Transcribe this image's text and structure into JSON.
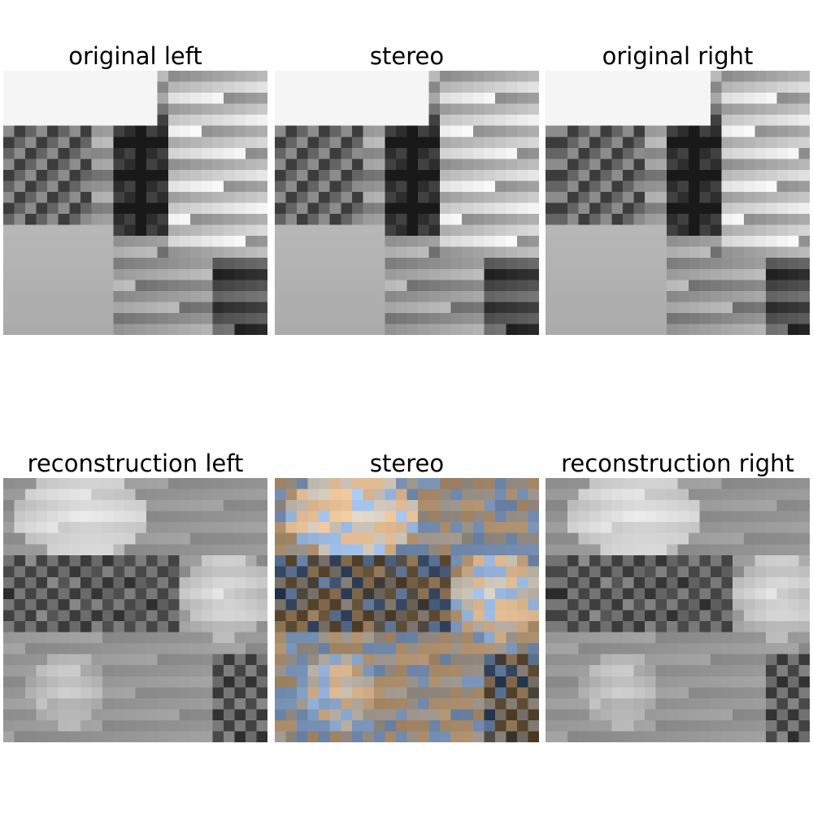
{
  "figure": {
    "panels": [
      {
        "title": "original left",
        "kind": "original-left"
      },
      {
        "title": "stereo",
        "kind": "original-stereo"
      },
      {
        "title": "original right",
        "kind": "original-right"
      },
      {
        "title": "reconstruction left",
        "kind": "recon-left"
      },
      {
        "title": "stereo",
        "kind": "recon-stereo"
      },
      {
        "title": "reconstruction right",
        "kind": "recon-right"
      }
    ],
    "grid": 24,
    "colors": {
      "recon_tint_warm": "#b8967a",
      "recon_tint_cool": "#a9c6e2"
    }
  }
}
